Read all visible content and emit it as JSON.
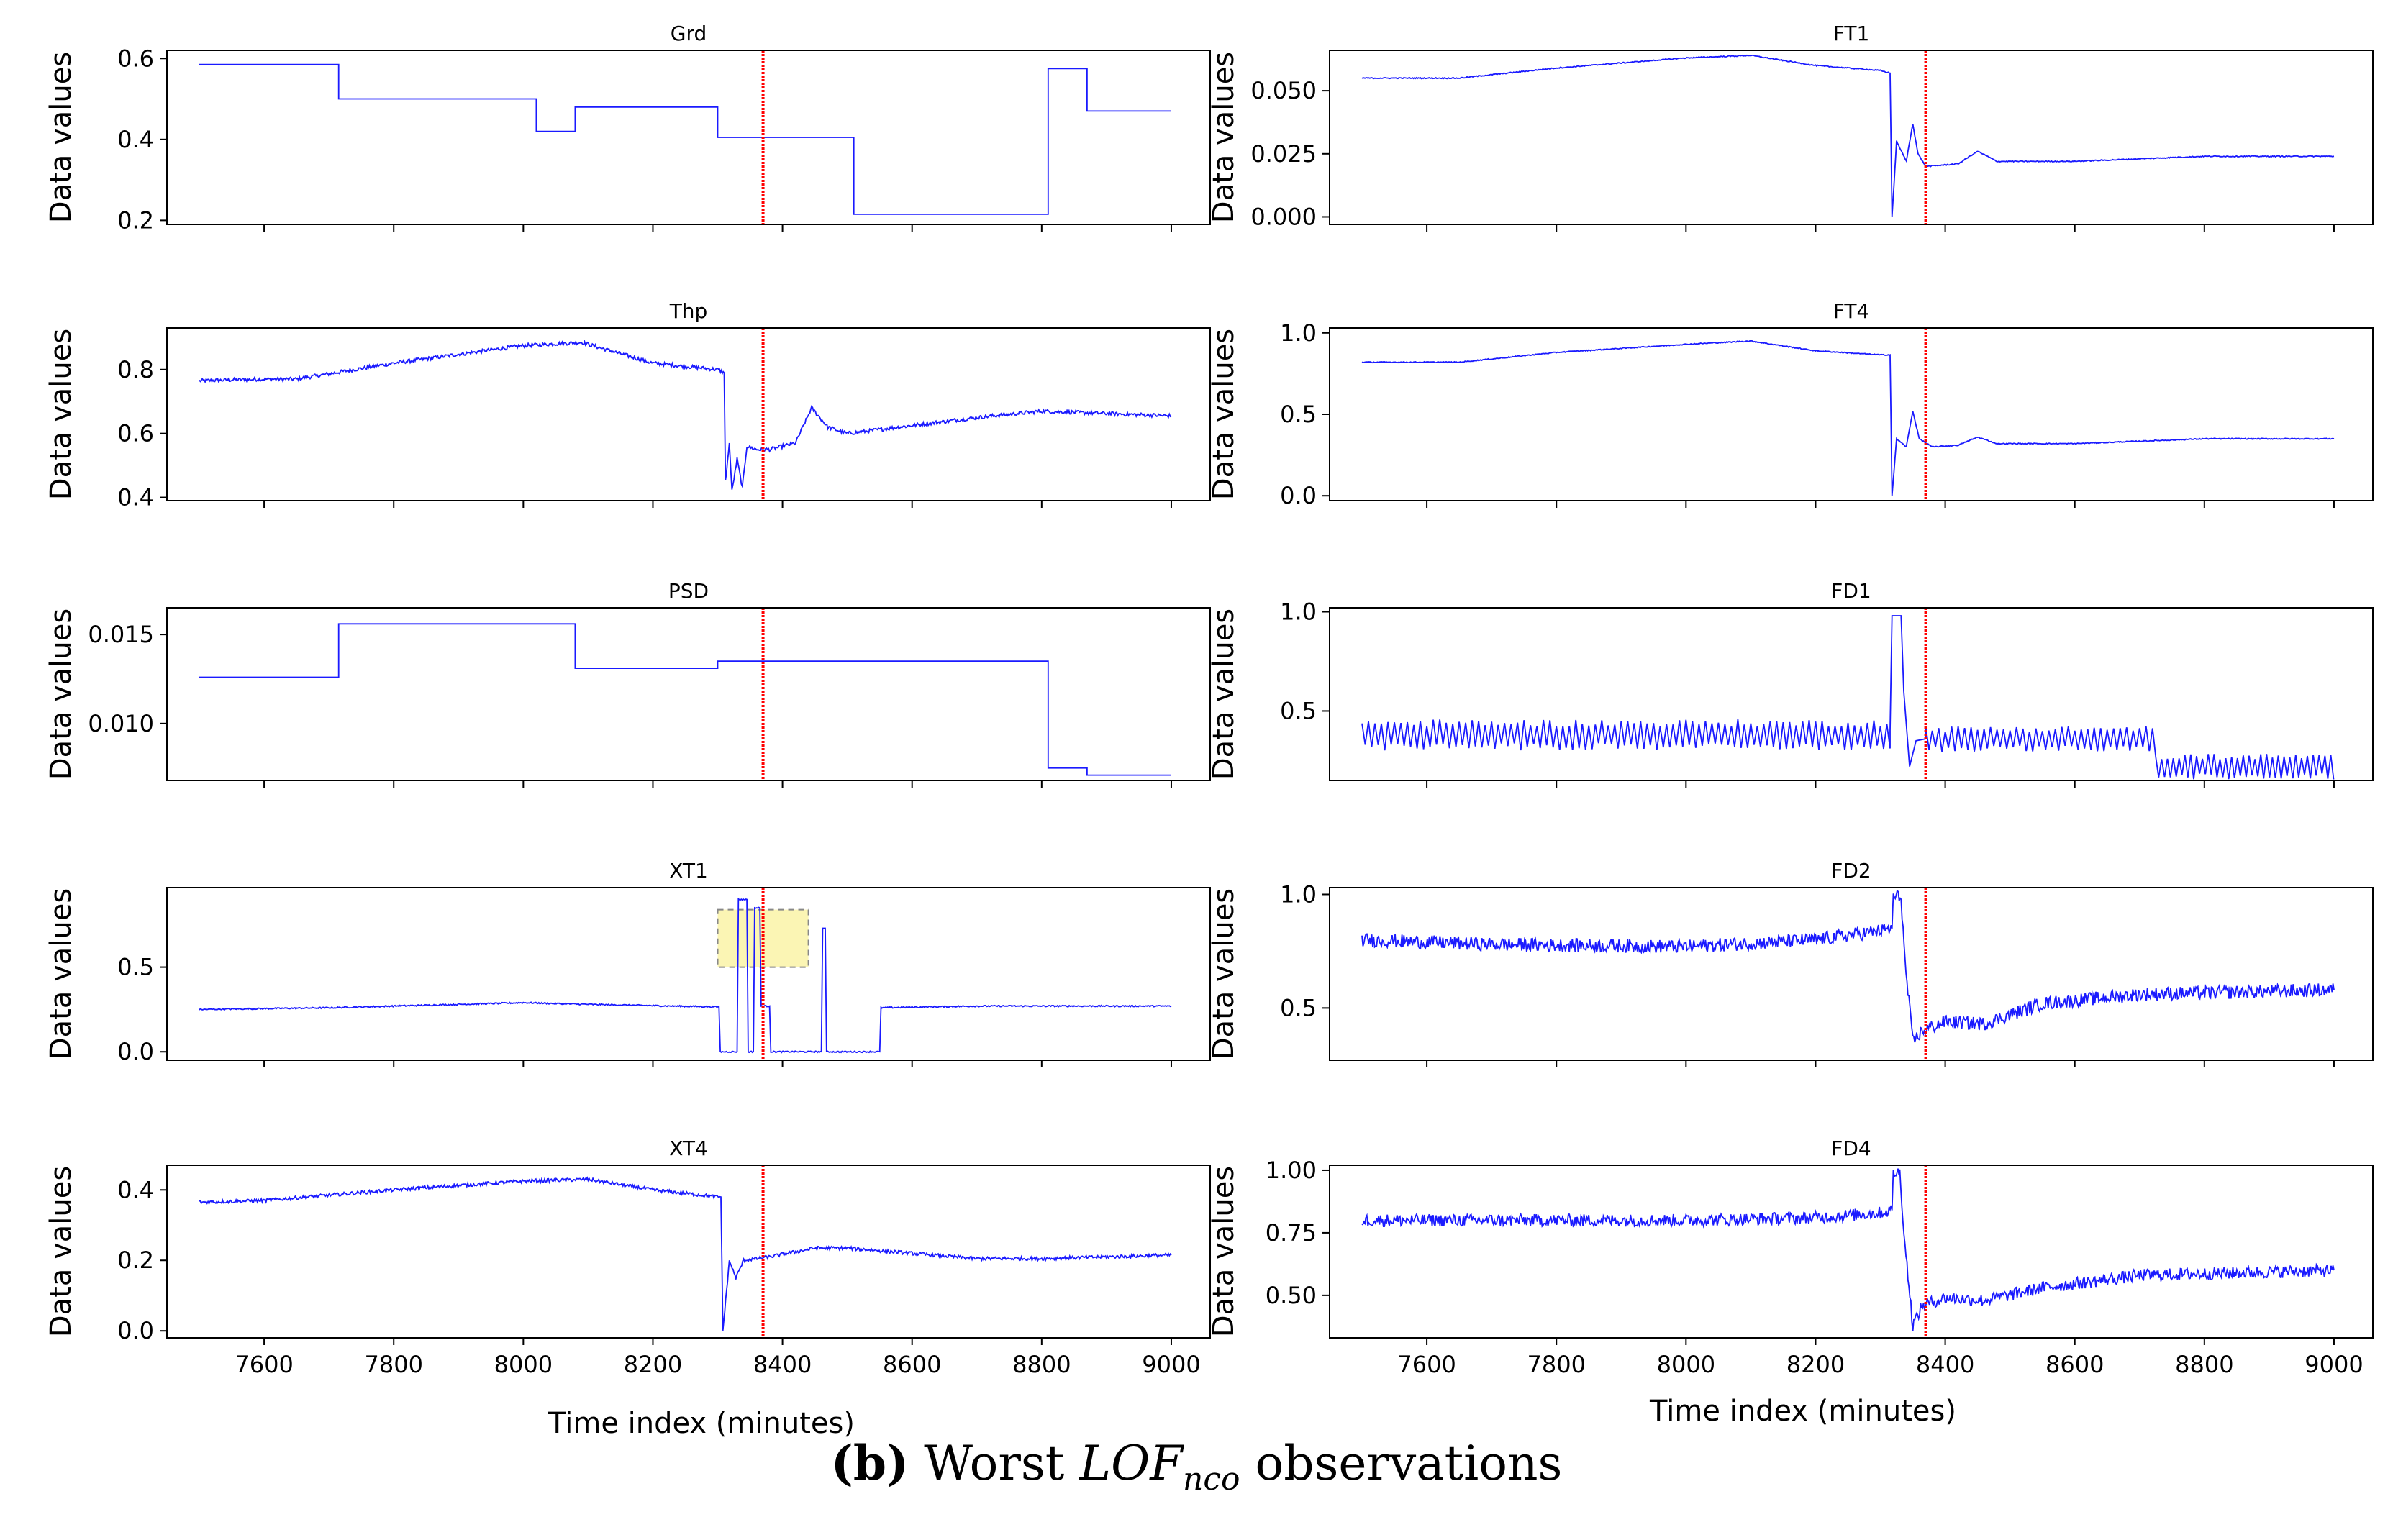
{
  "chart_data": {
    "type": "line",
    "figure_label": "(b)",
    "caption_pre": "Worst ",
    "caption_lof": "LOF",
    "caption_sub": "nco",
    "caption_post": " observations",
    "ylabel": "Data values",
    "xlabel": "Time index (minutes)",
    "xlim": [
      7450,
      9060
    ],
    "xticks": [
      7600,
      7800,
      8000,
      8200,
      8400,
      8600,
      8800,
      9000
    ],
    "marker_x": 8370,
    "colors": {
      "series": "#1a1aff",
      "marker": "#ff0000",
      "highlight_fill": "#fbf5b4",
      "highlight_stroke": "#888888",
      "axes": "#000000"
    },
    "panels": [
      {
        "name": "Grd",
        "col": 0,
        "row": 0,
        "ylim": [
          0.19,
          0.62
        ],
        "yticks": [
          0.2,
          0.4,
          0.6
        ],
        "ytick_labels": [
          "0.2",
          "0.4",
          "0.6"
        ],
        "kind": "step",
        "points": [
          [
            7500,
            0.585
          ],
          [
            7715,
            0.585
          ],
          [
            7715,
            0.5
          ],
          [
            8020,
            0.5
          ],
          [
            8020,
            0.42
          ],
          [
            8080,
            0.42
          ],
          [
            8080,
            0.48
          ],
          [
            8300,
            0.48
          ],
          [
            8300,
            0.405
          ],
          [
            8510,
            0.405
          ],
          [
            8510,
            0.215
          ],
          [
            8810,
            0.215
          ],
          [
            8810,
            0.575
          ],
          [
            8870,
            0.575
          ],
          [
            8870,
            0.47
          ],
          [
            9000,
            0.47
          ]
        ]
      },
      {
        "name": "Thp",
        "col": 0,
        "row": 1,
        "ylim": [
          0.39,
          0.93
        ],
        "yticks": [
          0.4,
          0.6,
          0.8
        ],
        "ytick_labels": [
          "0.4",
          "0.6",
          "0.8"
        ],
        "kind": "noisy",
        "noise": 0.006,
        "points": [
          [
            7500,
            0.765
          ],
          [
            7600,
            0.77
          ],
          [
            7650,
            0.77
          ],
          [
            7800,
            0.82
          ],
          [
            8000,
            0.875
          ],
          [
            8090,
            0.885
          ],
          [
            8200,
            0.82
          ],
          [
            8300,
            0.8
          ],
          [
            8310,
            0.79
          ],
          [
            8312,
            0.45
          ],
          [
            8318,
            0.57
          ],
          [
            8322,
            0.42
          ],
          [
            8330,
            0.52
          ],
          [
            8338,
            0.43
          ],
          [
            8345,
            0.56
          ],
          [
            8360,
            0.55
          ],
          [
            8380,
            0.55
          ],
          [
            8420,
            0.57
          ],
          [
            8445,
            0.68
          ],
          [
            8470,
            0.62
          ],
          [
            8500,
            0.6
          ],
          [
            8700,
            0.65
          ],
          [
            8800,
            0.67
          ],
          [
            9000,
            0.655
          ]
        ]
      },
      {
        "name": "PSD",
        "col": 0,
        "row": 2,
        "ylim": [
          0.0068,
          0.0165
        ],
        "yticks": [
          0.01,
          0.015
        ],
        "ytick_labels": [
          "0.010",
          "0.015"
        ],
        "kind": "step",
        "points": [
          [
            7500,
            0.0126
          ],
          [
            7715,
            0.0126
          ],
          [
            7715,
            0.0156
          ],
          [
            8080,
            0.0156
          ],
          [
            8080,
            0.0131
          ],
          [
            8300,
            0.0131
          ],
          [
            8300,
            0.0135
          ],
          [
            8810,
            0.0135
          ],
          [
            8810,
            0.0075
          ],
          [
            8870,
            0.0075
          ],
          [
            8870,
            0.0071
          ],
          [
            9000,
            0.0071
          ]
        ]
      },
      {
        "name": "XT1",
        "col": 0,
        "row": 3,
        "ylim": [
          -0.05,
          0.97
        ],
        "yticks": [
          0.0,
          0.5
        ],
        "ytick_labels": [
          "0.0",
          "0.5"
        ],
        "kind": "noisy",
        "noise": 0.004,
        "points": [
          [
            7500,
            0.25
          ],
          [
            7700,
            0.26
          ],
          [
            8000,
            0.29
          ],
          [
            8100,
            0.28
          ],
          [
            8300,
            0.265
          ],
          [
            8302,
            0.265
          ],
          [
            8304,
            0.0
          ],
          [
            8330,
            0.0
          ],
          [
            8332,
            0.9
          ],
          [
            8345,
            0.9
          ],
          [
            8347,
            0.0
          ],
          [
            8355,
            0.0
          ],
          [
            8357,
            0.85
          ],
          [
            8365,
            0.85
          ],
          [
            8367,
            0.27
          ],
          [
            8380,
            0.27
          ],
          [
            8382,
            0.0
          ],
          [
            8460,
            0.0
          ],
          [
            8462,
            0.73
          ],
          [
            8466,
            0.73
          ],
          [
            8468,
            0.0
          ],
          [
            8550,
            0.0
          ],
          [
            8552,
            0.26
          ],
          [
            8700,
            0.27
          ],
          [
            9000,
            0.27
          ]
        ],
        "highlight": {
          "x0": 8300,
          "x1": 8440,
          "y0": 0.5,
          "y1": 0.84
        }
      },
      {
        "name": "XT4",
        "col": 0,
        "row": 4,
        "ylim": [
          -0.02,
          0.47
        ],
        "yticks": [
          0.0,
          0.2,
          0.4
        ],
        "ytick_labels": [
          "0.0",
          "0.2",
          "0.4"
        ],
        "kind": "noisy",
        "noise": 0.005,
        "points": [
          [
            7500,
            0.365
          ],
          [
            7600,
            0.37
          ],
          [
            7800,
            0.4
          ],
          [
            8000,
            0.425
          ],
          [
            8100,
            0.43
          ],
          [
            8200,
            0.4
          ],
          [
            8300,
            0.38
          ],
          [
            8305,
            0.38
          ],
          [
            8308,
            0.0
          ],
          [
            8318,
            0.2
          ],
          [
            8328,
            0.15
          ],
          [
            8340,
            0.2
          ],
          [
            8380,
            0.21
          ],
          [
            8450,
            0.235
          ],
          [
            8500,
            0.235
          ],
          [
            8600,
            0.22
          ],
          [
            8700,
            0.205
          ],
          [
            8800,
            0.205
          ],
          [
            8900,
            0.21
          ],
          [
            9000,
            0.215
          ]
        ]
      },
      {
        "name": "FT1",
        "col": 1,
        "row": 0,
        "ylim": [
          -0.003,
          0.066
        ],
        "yticks": [
          0.0,
          0.025,
          0.05
        ],
        "ytick_labels": [
          "0.000",
          "0.025",
          "0.050"
        ],
        "kind": "noisy",
        "noise": 0.0002,
        "points": [
          [
            7500,
            0.055
          ],
          [
            7650,
            0.055
          ],
          [
            7800,
            0.059
          ],
          [
            8000,
            0.063
          ],
          [
            8100,
            0.064
          ],
          [
            8200,
            0.06
          ],
          [
            8300,
            0.058
          ],
          [
            8315,
            0.057
          ],
          [
            8318,
            0.0
          ],
          [
            8325,
            0.03
          ],
          [
            8340,
            0.022
          ],
          [
            8350,
            0.037
          ],
          [
            8358,
            0.025
          ],
          [
            8370,
            0.02
          ],
          [
            8420,
            0.021
          ],
          [
            8450,
            0.026
          ],
          [
            8480,
            0.022
          ],
          [
            8600,
            0.022
          ],
          [
            8800,
            0.024
          ],
          [
            9000,
            0.024
          ]
        ]
      },
      {
        "name": "FT4",
        "col": 1,
        "row": 1,
        "ylim": [
          -0.03,
          1.03
        ],
        "yticks": [
          0.0,
          0.5,
          1.0
        ],
        "ytick_labels": [
          "0.0",
          "0.5",
          "1.0"
        ],
        "kind": "noisy",
        "noise": 0.003,
        "points": [
          [
            7500,
            0.82
          ],
          [
            7650,
            0.82
          ],
          [
            7800,
            0.88
          ],
          [
            8000,
            0.93
          ],
          [
            8100,
            0.95
          ],
          [
            8200,
            0.89
          ],
          [
            8300,
            0.865
          ],
          [
            8315,
            0.865
          ],
          [
            8318,
            0.0
          ],
          [
            8325,
            0.35
          ],
          [
            8340,
            0.3
          ],
          [
            8350,
            0.52
          ],
          [
            8360,
            0.35
          ],
          [
            8380,
            0.3
          ],
          [
            8420,
            0.31
          ],
          [
            8450,
            0.36
          ],
          [
            8480,
            0.32
          ],
          [
            8600,
            0.32
          ],
          [
            8800,
            0.35
          ],
          [
            9000,
            0.35
          ]
        ]
      },
      {
        "name": "FD1",
        "col": 1,
        "row": 2,
        "ylim": [
          0.15,
          1.02
        ],
        "yticks": [
          0.5,
          1.0
        ],
        "ytick_labels": [
          "0.5",
          "1.0"
        ],
        "kind": "osc",
        "segments": [
          {
            "x0": 7500,
            "x1": 8315,
            "base": 0.38,
            "amp": 0.06,
            "period": 10
          },
          {
            "x0": 8370,
            "x1": 8720,
            "base": 0.36,
            "amp": 0.05,
            "period": 10
          },
          {
            "x0": 8725,
            "x1": 9000,
            "base": 0.22,
            "amp": 0.05,
            "period": 9
          }
        ],
        "points": [
          [
            8315,
            0.4
          ],
          [
            8318,
            0.98
          ],
          [
            8332,
            0.98
          ],
          [
            8336,
            0.6
          ],
          [
            8345,
            0.22
          ],
          [
            8355,
            0.35
          ],
          [
            8370,
            0.36
          ]
        ]
      },
      {
        "name": "FD2",
        "col": 1,
        "row": 3,
        "ylim": [
          0.27,
          1.03
        ],
        "yticks": [
          0.5,
          1.0
        ],
        "ytick_labels": [
          "0.5",
          "1.0"
        ],
        "kind": "noisy",
        "noise": 0.03,
        "points": [
          [
            7500,
            0.8
          ],
          [
            7700,
            0.78
          ],
          [
            8000,
            0.77
          ],
          [
            8200,
            0.8
          ],
          [
            8300,
            0.84
          ],
          [
            8318,
            0.85
          ],
          [
            8320,
            0.99
          ],
          [
            8332,
            0.99
          ],
          [
            8338,
            0.7
          ],
          [
            8350,
            0.35
          ],
          [
            8365,
            0.4
          ],
          [
            8400,
            0.44
          ],
          [
            8460,
            0.43
          ],
          [
            8550,
            0.52
          ],
          [
            8700,
            0.56
          ],
          [
            9000,
            0.58
          ]
        ]
      },
      {
        "name": "FD4",
        "col": 1,
        "row": 4,
        "ylim": [
          0.33,
          1.02
        ],
        "yticks": [
          0.5,
          0.75,
          1.0
        ],
        "ytick_labels": [
          "0.50",
          "0.75",
          "1.00"
        ],
        "kind": "noisy",
        "noise": 0.025,
        "points": [
          [
            7500,
            0.8
          ],
          [
            7700,
            0.8
          ],
          [
            8000,
            0.8
          ],
          [
            8200,
            0.81
          ],
          [
            8300,
            0.83
          ],
          [
            8318,
            0.84
          ],
          [
            8320,
            0.99
          ],
          [
            8330,
            0.99
          ],
          [
            8338,
            0.7
          ],
          [
            8350,
            0.38
          ],
          [
            8365,
            0.46
          ],
          [
            8400,
            0.49
          ],
          [
            8460,
            0.48
          ],
          [
            8550,
            0.53
          ],
          [
            8700,
            0.58
          ],
          [
            9000,
            0.6
          ]
        ]
      }
    ]
  }
}
